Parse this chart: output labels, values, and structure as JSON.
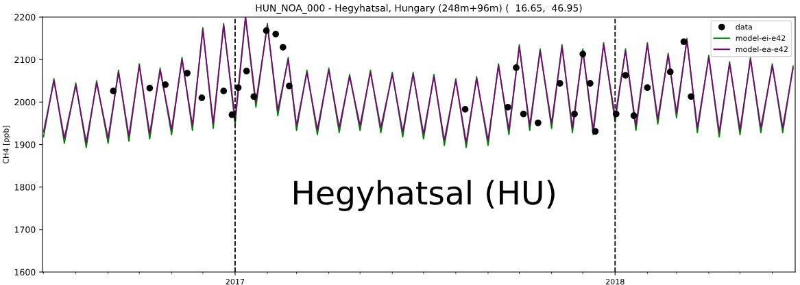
{
  "chart_data": {
    "type": "line",
    "title": "HUN_NOA_000 - Hegyhatsal, Hungary (248m+96m) (  16.65,  46.95)",
    "ylabel": "CH4 [ppb]",
    "annotations": [
      "Hegyhatsal (HU)"
    ],
    "xlim": [
      "2016-06-30",
      "2018-06-23"
    ],
    "ylim": [
      1600,
      2200
    ],
    "yticks": [
      1600,
      1700,
      1800,
      1900,
      2000,
      2100,
      2200
    ],
    "xticks": [
      {
        "value": "2016-07-01",
        "label": null
      },
      {
        "value": "2016-08-01",
        "label": null
      },
      {
        "value": "2016-09-01",
        "label": null
      },
      {
        "value": "2016-10-01",
        "label": null
      },
      {
        "value": "2016-11-01",
        "label": null
      },
      {
        "value": "2016-12-01",
        "label": null
      },
      {
        "value": "2017-01-01",
        "label": "2017"
      },
      {
        "value": "2017-02-01",
        "label": null
      },
      {
        "value": "2017-03-01",
        "label": null
      },
      {
        "value": "2017-04-01",
        "label": null
      },
      {
        "value": "2017-05-01",
        "label": null
      },
      {
        "value": "2017-06-01",
        "label": null
      },
      {
        "value": "2017-07-01",
        "label": null
      },
      {
        "value": "2017-08-01",
        "label": null
      },
      {
        "value": "2017-09-01",
        "label": null
      },
      {
        "value": "2017-10-01",
        "label": null
      },
      {
        "value": "2017-11-01",
        "label": null
      },
      {
        "value": "2017-12-01",
        "label": null
      },
      {
        "value": "2018-01-01",
        "label": "2018"
      },
      {
        "value": "2018-02-01",
        "label": null
      },
      {
        "value": "2018-03-01",
        "label": null
      },
      {
        "value": "2018-04-01",
        "label": null
      },
      {
        "value": "2018-05-01",
        "label": null
      },
      {
        "value": "2018-06-01",
        "label": null
      }
    ],
    "ref_lines": [
      {
        "axis": "x",
        "value": "2017-01-01",
        "label": null,
        "color": "#000000",
        "line_style": "dashed"
      },
      {
        "axis": "x",
        "value": "2018-01-01",
        "label": null,
        "color": "#000000",
        "line_style": "dashed"
      }
    ],
    "grid": false,
    "legend": "top right",
    "series": [
      {
        "name": "data",
        "type": "scatter",
        "marker": "circle",
        "color": "#000000",
        "x": [
          "2016-09-06",
          "2016-10-11",
          "2016-10-26",
          "2016-11-16",
          "2016-11-30",
          "2016-12-21",
          "2016-12-29",
          "2017-01-04",
          "2017-01-12",
          "2017-01-19",
          "2017-01-31",
          "2017-02-09",
          "2017-02-16",
          "2017-02-22",
          "2017-08-10",
          "2017-09-20",
          "2017-09-28",
          "2017-10-05",
          "2017-10-19",
          "2017-11-09",
          "2017-11-23",
          "2017-12-01",
          "2017-12-08",
          "2017-12-13",
          "2018-01-02",
          "2018-01-11",
          "2018-01-19",
          "2018-02-01",
          "2018-02-23",
          "2018-03-08",
          "2018-03-15"
        ],
        "values": [
          2026,
          2033,
          2041,
          2068,
          2010,
          2026,
          1970,
          2034,
          2073,
          2013,
          2168,
          2160,
          2129,
          2038,
          1983,
          1988,
          2081,
          1972,
          1951,
          2044,
          1972,
          2113,
          2044,
          1931,
          1972,
          2063,
          1968,
          2034,
          2071,
          2142,
          2013
        ]
      },
      {
        "name": "model-ei-e42",
        "line_style": "solid",
        "color": "#008000",
        "values": [
          1918,
          2055,
          1903,
          2045,
          1893,
          2050,
          1903,
          2075,
          1908,
          2090,
          1913,
          2080,
          1923,
          2105,
          1933,
          2175,
          1938,
          2185,
          1948,
          2200,
          1988,
          2185,
          1968,
          2105,
          1933,
          2075,
          1923,
          2080,
          1928,
          2065,
          1933,
          2075,
          1928,
          2070,
          1918,
          2070,
          1913,
          2065,
          1898,
          2055,
          1893,
          2060,
          1898,
          2090,
          1923,
          2135,
          1933,
          2125,
          1938,
          2135,
          1928,
          2125,
          1923,
          2140,
          1953,
          2125,
          1933,
          2140,
          1948,
          2115,
          1963,
          2150,
          1928,
          2110,
          1918,
          2095,
          1923,
          2105,
          1928,
          2090,
          1928,
          2085
        ]
      },
      {
        "name": "model-ea-e42",
        "line_style": "solid",
        "color": "#800080",
        "values": [
          1930,
          2050,
          1915,
          2040,
          1905,
          2045,
          1915,
          2070,
          1920,
          2085,
          1925,
          2075,
          1935,
          2100,
          1945,
          2170,
          1950,
          2180,
          1960,
          2200,
          2000,
          2180,
          1980,
          2100,
          1945,
          2070,
          1935,
          2075,
          1940,
          2060,
          1945,
          2070,
          1940,
          2065,
          1930,
          2065,
          1925,
          2060,
          1910,
          2050,
          1905,
          2055,
          1910,
          2085,
          1935,
          2130,
          1945,
          2120,
          1950,
          2130,
          1940,
          2120,
          1935,
          2135,
          1965,
          2120,
          1945,
          2135,
          1960,
          2110,
          1975,
          2145,
          1940,
          2105,
          1930,
          2090,
          1935,
          2100,
          1940,
          2085,
          1940,
          2080
        ]
      }
    ],
    "x": [
      "2016-07-01",
      "2016-07-11",
      "2016-07-21",
      "2016-08-01",
      "2016-08-11",
      "2016-08-21",
      "2016-09-01",
      "2016-09-11",
      "2016-09-21",
      "2016-10-01",
      "2016-10-11",
      "2016-10-21",
      "2016-11-01",
      "2016-11-11",
      "2016-11-21",
      "2016-12-01",
      "2016-12-11",
      "2016-12-21",
      "2017-01-01",
      "2017-01-11",
      "2017-01-21",
      "2017-02-01",
      "2017-02-11",
      "2017-02-21",
      "2017-03-01",
      "2017-03-11",
      "2017-03-21",
      "2017-04-01",
      "2017-04-11",
      "2017-04-21",
      "2017-05-01",
      "2017-05-11",
      "2017-05-21",
      "2017-06-01",
      "2017-06-11",
      "2017-06-21",
      "2017-07-01",
      "2017-07-11",
      "2017-07-21",
      "2017-08-01",
      "2017-08-11",
      "2017-08-21",
      "2017-09-01",
      "2017-09-11",
      "2017-09-21",
      "2017-10-01",
      "2017-10-11",
      "2017-10-21",
      "2017-11-01",
      "2017-11-11",
      "2017-11-21",
      "2017-12-01",
      "2017-12-11",
      "2017-12-21",
      "2018-01-01",
      "2018-01-11",
      "2018-01-21",
      "2018-02-01",
      "2018-02-11",
      "2018-02-21",
      "2018-03-01",
      "2018-03-11",
      "2018-03-21",
      "2018-04-01",
      "2018-04-11",
      "2018-04-21",
      "2018-05-01",
      "2018-05-11",
      "2018-05-21",
      "2018-06-01",
      "2018-06-11",
      "2018-06-21"
    ]
  }
}
